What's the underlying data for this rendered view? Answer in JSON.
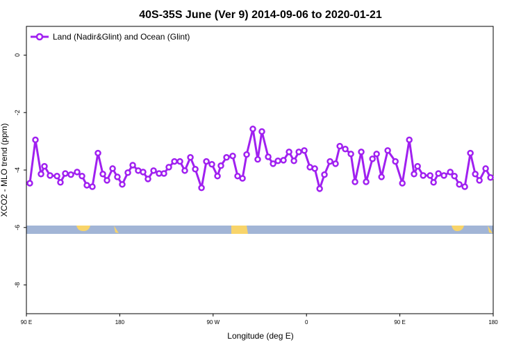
{
  "chart_data": {
    "type": "line",
    "title": "40S-35S June (Ver 9)   2014-09-06 to 2020-01-21",
    "x_label": "Longitude (deg E)",
    "y_label": "XCO2 - MLO trend (ppm)",
    "xlim": [
      90,
      540
    ],
    "ylim": [
      -9,
      1
    ],
    "xticks": [
      {
        "value": 90,
        "label": "90 E"
      },
      180,
      {
        "value": 270,
        "label": "90 W"
      },
      {
        "value": 360,
        "label": "0"
      },
      {
        "value": 450,
        "label": "90 E"
      },
      {
        "value": 540,
        "label": "180"
      }
    ],
    "yticks": [
      0,
      -2,
      -4,
      -6,
      -8
    ],
    "series": [
      {
        "name": "Land (Nadir&Glint) and Ocean (Glint)",
        "color": "#a020f0",
        "x": [
          93.3,
          98.7,
          104.1,
          107.4,
          112.8,
          119.5,
          122.8,
          127.5,
          132.9,
          138.9,
          143.6,
          148.3,
          153.6,
          159,
          163.7,
          167.7,
          173.1,
          177.7,
          182.4,
          187.8,
          192.5,
          197.8,
          202.5,
          207.2,
          212.6,
          217.9,
          222.6,
          227.3,
          232.7,
          238,
          242.7,
          248.1,
          252.8,
          258.8,
          263.5,
          268.8,
          274.2,
          277.5,
          282.9,
          288.9,
          293.6,
          298.3,
          302.3,
          308.3,
          313,
          317,
          323.1,
          327.8,
          332.5,
          337.8,
          343.2,
          347.9,
          352.6,
          357.9,
          363.3,
          368,
          372.7,
          377.3,
          382.7,
          388,
          392.1,
          397.4,
          402.8,
          406.8,
          412.8,
          417.5,
          423.6,
          427.6,
          432.3,
          438.3,
          445.7,
          452.4,
          459.1,
          463.7,
          467.1,
          472.5,
          479.2,
          482.5,
          487.2,
          492.5,
          498.6,
          502.6,
          507.3,
          512.6,
          518,
          522.7,
          526.7,
          532.7,
          537.4
        ],
        "values": [
          -4.46,
          -2.95,
          -4.14,
          -3.87,
          -4.19,
          -4.21,
          -4.43,
          -4.12,
          -4.16,
          -4.07,
          -4.21,
          -4.53,
          -4.58,
          -3.41,
          -4.14,
          -4.36,
          -3.95,
          -4.24,
          -4.5,
          -4.09,
          -3.83,
          -4.02,
          -4.07,
          -4.31,
          -4.02,
          -4.12,
          -4.12,
          -3.9,
          -3.7,
          -3.7,
          -4.02,
          -3.56,
          -3.97,
          -4.62,
          -3.7,
          -3.8,
          -4.21,
          -3.85,
          -3.56,
          -3.51,
          -4.21,
          -4.29,
          -3.46,
          -2.57,
          -3.63,
          -2.66,
          -3.54,
          -3.78,
          -3.68,
          -3.66,
          -3.37,
          -3.68,
          -3.37,
          -3.32,
          -3.9,
          -3.95,
          -4.65,
          -4.16,
          -3.7,
          -3.78,
          -3.17,
          -3.27,
          -3.44,
          -4.41,
          -3.37,
          -4.41,
          -3.61,
          -3.44,
          -4.24,
          -3.32,
          -3.7,
          -4.46,
          -2.95,
          -4.14,
          -3.87,
          -4.19,
          -4.19,
          -4.43,
          -4.12,
          -4.19,
          -4.07,
          -4.21,
          -4.5,
          -4.58,
          -3.41,
          -4.14,
          -4.36,
          -3.95,
          -4.26
        ]
      }
    ],
    "legend": "top-left"
  }
}
